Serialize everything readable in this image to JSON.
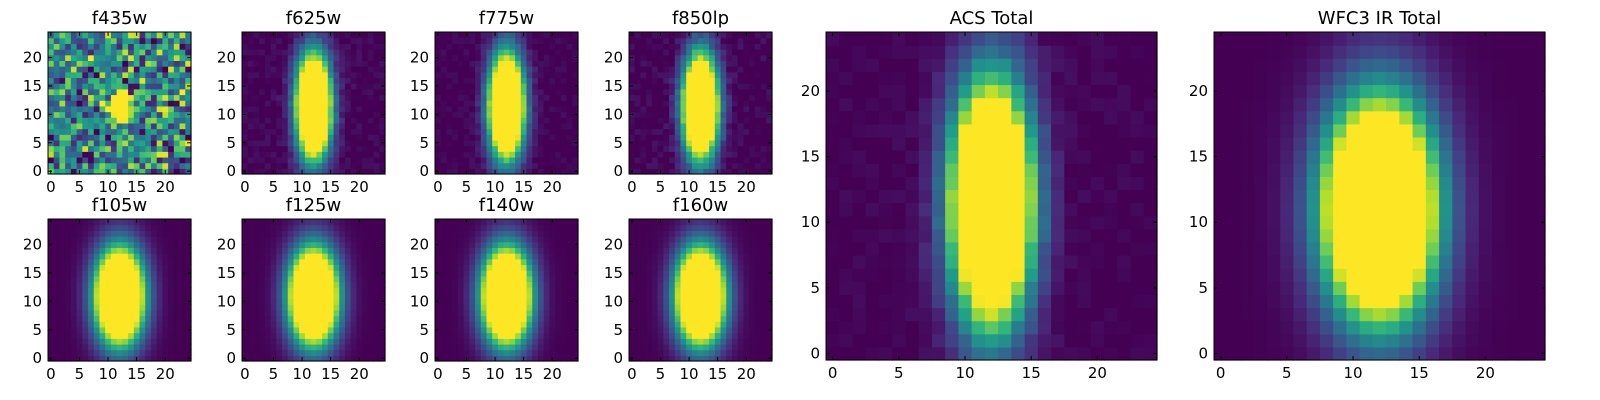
{
  "figure": {
    "colormap": "viridis"
  },
  "chart_data": [
    {
      "type": "heatmap",
      "title": "f435w",
      "x_ticks": [
        "0",
        "5",
        "10",
        "15",
        "20"
      ],
      "y_ticks": [
        "0",
        "5",
        "10",
        "15",
        "20"
      ],
      "xlim": [
        0,
        24
      ],
      "ylim": [
        0,
        24
      ],
      "grid": false,
      "center": [
        12,
        11.5
      ],
      "width": [
        1.2,
        1.2
      ],
      "peak_fraction": 0.35,
      "noise": 0.35
    },
    {
      "type": "heatmap",
      "title": "f625w",
      "x_ticks": [
        "0",
        "5",
        "10",
        "15",
        "20"
      ],
      "y_ticks": [
        "0",
        "5",
        "10",
        "15",
        "20"
      ],
      "xlim": [
        0,
        24
      ],
      "ylim": [
        0,
        24
      ],
      "grid": false,
      "center": [
        12,
        11.5
      ],
      "width": [
        2.0,
        6.0
      ],
      "peak_fraction": 0.4,
      "noise": 0.05
    },
    {
      "type": "heatmap",
      "title": "f775w",
      "x_ticks": [
        "0",
        "5",
        "10",
        "15",
        "20"
      ],
      "y_ticks": [
        "0",
        "5",
        "10",
        "15",
        "20"
      ],
      "xlim": [
        0,
        24
      ],
      "ylim": [
        0,
        24
      ],
      "grid": false,
      "center": [
        12,
        11.5
      ],
      "width": [
        2.0,
        6.0
      ],
      "peak_fraction": 0.4,
      "noise": 0.04
    },
    {
      "type": "heatmap",
      "title": "f850lp",
      "x_ticks": [
        "0",
        "5",
        "10",
        "15",
        "20"
      ],
      "y_ticks": [
        "0",
        "5",
        "10",
        "15",
        "20"
      ],
      "xlim": [
        0,
        24
      ],
      "ylim": [
        0,
        24
      ],
      "grid": false,
      "center": [
        12,
        11.5
      ],
      "width": [
        2.0,
        6.0
      ],
      "peak_fraction": 0.4,
      "noise": 0.06
    },
    {
      "type": "heatmap",
      "title": "f105w",
      "x_ticks": [
        "0",
        "5",
        "10",
        "15",
        "20"
      ],
      "y_ticks": [
        "0",
        "5",
        "10",
        "15",
        "20"
      ],
      "xlim": [
        0,
        24
      ],
      "ylim": [
        0,
        24
      ],
      "grid": false,
      "center": [
        12,
        11
      ],
      "width": [
        2.8,
        5.5
      ],
      "peak_fraction": 0.4,
      "noise": 0.0
    },
    {
      "type": "heatmap",
      "title": "f125w",
      "x_ticks": [
        "0",
        "5",
        "10",
        "15",
        "20"
      ],
      "y_ticks": [
        "0",
        "5",
        "10",
        "15",
        "20"
      ],
      "xlim": [
        0,
        24
      ],
      "ylim": [
        0,
        24
      ],
      "grid": false,
      "center": [
        12,
        11
      ],
      "width": [
        2.8,
        5.5
      ],
      "peak_fraction": 0.4,
      "noise": 0.0
    },
    {
      "type": "heatmap",
      "title": "f140w",
      "x_ticks": [
        "0",
        "5",
        "10",
        "15",
        "20"
      ],
      "y_ticks": [
        "0",
        "5",
        "10",
        "15",
        "20"
      ],
      "xlim": [
        0,
        24
      ],
      "ylim": [
        0,
        24
      ],
      "grid": false,
      "center": [
        12,
        11
      ],
      "width": [
        2.8,
        5.5
      ],
      "peak_fraction": 0.4,
      "noise": 0.0
    },
    {
      "type": "heatmap",
      "title": "f160w",
      "x_ticks": [
        "0",
        "5",
        "10",
        "15",
        "20"
      ],
      "y_ticks": [
        "0",
        "5",
        "10",
        "15",
        "20"
      ],
      "xlim": [
        0,
        24
      ],
      "ylim": [
        0,
        24
      ],
      "grid": false,
      "center": [
        12,
        11
      ],
      "width": [
        2.8,
        5.5
      ],
      "peak_fraction": 0.4,
      "noise": 0.0
    },
    {
      "type": "heatmap",
      "title": "ACS Total",
      "x_ticks": [
        "0",
        "5",
        "10",
        "15",
        "20"
      ],
      "y_ticks": [
        "0",
        "5",
        "10",
        "15",
        "20"
      ],
      "xlim": [
        0,
        24
      ],
      "ylim": [
        0,
        24
      ],
      "grid": false,
      "center": [
        12,
        11.5
      ],
      "width": [
        2.0,
        6.0
      ],
      "peak_fraction": 0.4,
      "noise": 0.03
    },
    {
      "type": "heatmap",
      "title": "WFC3 IR Total",
      "x_ticks": [
        "0",
        "5",
        "10",
        "15",
        "20"
      ],
      "y_ticks": [
        "0",
        "5",
        "10",
        "15",
        "20"
      ],
      "xlim": [
        0,
        24
      ],
      "ylim": [
        0,
        24
      ],
      "grid": false,
      "center": [
        12,
        11
      ],
      "width": [
        2.8,
        5.5
      ],
      "peak_fraction": 0.4,
      "noise": 0.0
    }
  ]
}
